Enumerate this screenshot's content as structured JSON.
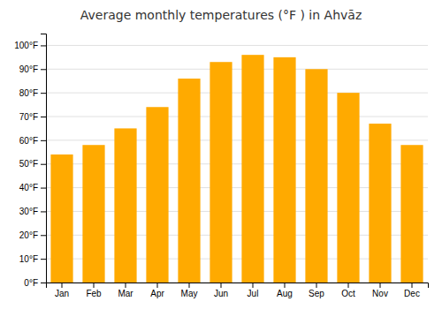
{
  "chart_data": {
    "type": "bar",
    "title": "Average monthly temperatures (°F ) in Ahvāz",
    "categories": [
      "Jan",
      "Feb",
      "Mar",
      "Apr",
      "May",
      "Jun",
      "Jul",
      "Aug",
      "Sep",
      "Oct",
      "Nov",
      "Dec"
    ],
    "values": [
      54,
      58,
      65,
      74,
      86,
      93,
      96,
      95,
      90,
      80,
      67,
      58
    ],
    "color": "#FFAA00",
    "ylim": [
      0,
      105
    ],
    "yticks": [
      {
        "value": 0,
        "label": "0°F"
      },
      {
        "value": 10,
        "label": "10°F"
      },
      {
        "value": 20,
        "label": "20°F"
      },
      {
        "value": 30,
        "label": "30°F"
      },
      {
        "value": 40,
        "label": "40°F"
      },
      {
        "value": 50,
        "label": "50°F"
      },
      {
        "value": 60,
        "label": "60°F"
      },
      {
        "value": 70,
        "label": "70°F"
      },
      {
        "value": 80,
        "label": "80°F"
      },
      {
        "value": 90,
        "label": "90°F"
      },
      {
        "value": 100,
        "label": "100°F"
      }
    ],
    "grid": true
  }
}
